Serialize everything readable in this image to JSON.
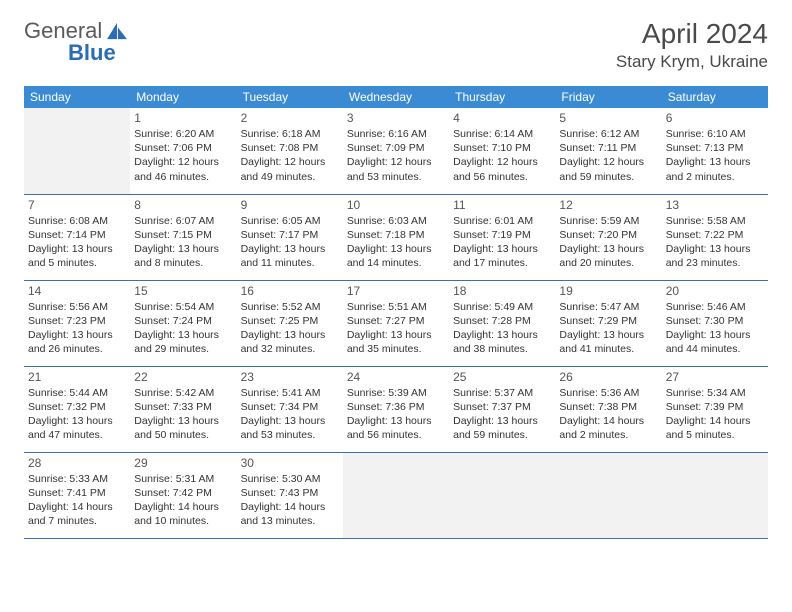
{
  "logo": {
    "word1": "General",
    "word2": "Blue"
  },
  "title": "April 2024",
  "location": "Stary Krym, Ukraine",
  "colors": {
    "header_bg": "#3b8bd4",
    "header_fg": "#ffffff",
    "row_border": "#3b6fa8",
    "empty_bg": "#f2f2f2",
    "logo_gray": "#5a5a5a",
    "logo_blue": "#2a6db5"
  },
  "weekdays": [
    "Sunday",
    "Monday",
    "Tuesday",
    "Wednesday",
    "Thursday",
    "Friday",
    "Saturday"
  ],
  "lead_empty": 1,
  "days": [
    {
      "n": 1,
      "sr": "6:20 AM",
      "ss": "7:06 PM",
      "dl": "12 hours and 46 minutes."
    },
    {
      "n": 2,
      "sr": "6:18 AM",
      "ss": "7:08 PM",
      "dl": "12 hours and 49 minutes."
    },
    {
      "n": 3,
      "sr": "6:16 AM",
      "ss": "7:09 PM",
      "dl": "12 hours and 53 minutes."
    },
    {
      "n": 4,
      "sr": "6:14 AM",
      "ss": "7:10 PM",
      "dl": "12 hours and 56 minutes."
    },
    {
      "n": 5,
      "sr": "6:12 AM",
      "ss": "7:11 PM",
      "dl": "12 hours and 59 minutes."
    },
    {
      "n": 6,
      "sr": "6:10 AM",
      "ss": "7:13 PM",
      "dl": "13 hours and 2 minutes."
    },
    {
      "n": 7,
      "sr": "6:08 AM",
      "ss": "7:14 PM",
      "dl": "13 hours and 5 minutes."
    },
    {
      "n": 8,
      "sr": "6:07 AM",
      "ss": "7:15 PM",
      "dl": "13 hours and 8 minutes."
    },
    {
      "n": 9,
      "sr": "6:05 AM",
      "ss": "7:17 PM",
      "dl": "13 hours and 11 minutes."
    },
    {
      "n": 10,
      "sr": "6:03 AM",
      "ss": "7:18 PM",
      "dl": "13 hours and 14 minutes."
    },
    {
      "n": 11,
      "sr": "6:01 AM",
      "ss": "7:19 PM",
      "dl": "13 hours and 17 minutes."
    },
    {
      "n": 12,
      "sr": "5:59 AM",
      "ss": "7:20 PM",
      "dl": "13 hours and 20 minutes."
    },
    {
      "n": 13,
      "sr": "5:58 AM",
      "ss": "7:22 PM",
      "dl": "13 hours and 23 minutes."
    },
    {
      "n": 14,
      "sr": "5:56 AM",
      "ss": "7:23 PM",
      "dl": "13 hours and 26 minutes."
    },
    {
      "n": 15,
      "sr": "5:54 AM",
      "ss": "7:24 PM",
      "dl": "13 hours and 29 minutes."
    },
    {
      "n": 16,
      "sr": "5:52 AM",
      "ss": "7:25 PM",
      "dl": "13 hours and 32 minutes."
    },
    {
      "n": 17,
      "sr": "5:51 AM",
      "ss": "7:27 PM",
      "dl": "13 hours and 35 minutes."
    },
    {
      "n": 18,
      "sr": "5:49 AM",
      "ss": "7:28 PM",
      "dl": "13 hours and 38 minutes."
    },
    {
      "n": 19,
      "sr": "5:47 AM",
      "ss": "7:29 PM",
      "dl": "13 hours and 41 minutes."
    },
    {
      "n": 20,
      "sr": "5:46 AM",
      "ss": "7:30 PM",
      "dl": "13 hours and 44 minutes."
    },
    {
      "n": 21,
      "sr": "5:44 AM",
      "ss": "7:32 PM",
      "dl": "13 hours and 47 minutes."
    },
    {
      "n": 22,
      "sr": "5:42 AM",
      "ss": "7:33 PM",
      "dl": "13 hours and 50 minutes."
    },
    {
      "n": 23,
      "sr": "5:41 AM",
      "ss": "7:34 PM",
      "dl": "13 hours and 53 minutes."
    },
    {
      "n": 24,
      "sr": "5:39 AM",
      "ss": "7:36 PM",
      "dl": "13 hours and 56 minutes."
    },
    {
      "n": 25,
      "sr": "5:37 AM",
      "ss": "7:37 PM",
      "dl": "13 hours and 59 minutes."
    },
    {
      "n": 26,
      "sr": "5:36 AM",
      "ss": "7:38 PM",
      "dl": "14 hours and 2 minutes."
    },
    {
      "n": 27,
      "sr": "5:34 AM",
      "ss": "7:39 PM",
      "dl": "14 hours and 5 minutes."
    },
    {
      "n": 28,
      "sr": "5:33 AM",
      "ss": "7:41 PM",
      "dl": "14 hours and 7 minutes."
    },
    {
      "n": 29,
      "sr": "5:31 AM",
      "ss": "7:42 PM",
      "dl": "14 hours and 10 minutes."
    },
    {
      "n": 30,
      "sr": "5:30 AM",
      "ss": "7:43 PM",
      "dl": "14 hours and 13 minutes."
    }
  ],
  "labels": {
    "sunrise": "Sunrise:",
    "sunset": "Sunset:",
    "daylight": "Daylight:"
  }
}
